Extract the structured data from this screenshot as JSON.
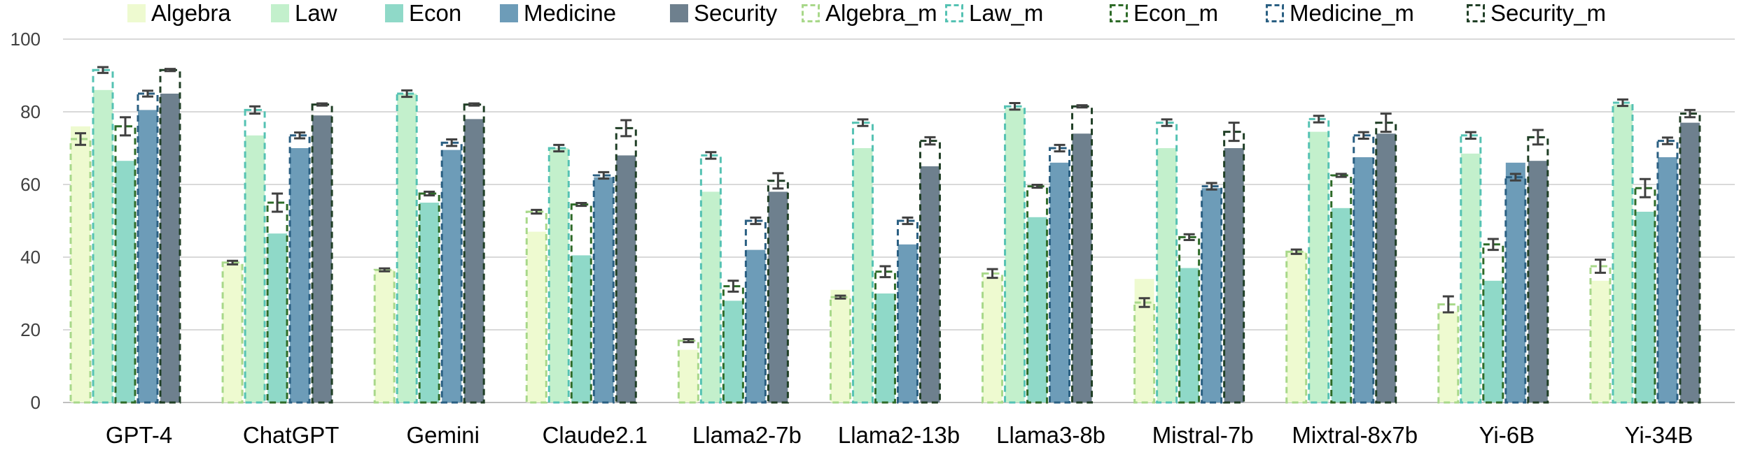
{
  "chart_data": {
    "type": "bar",
    "categories": [
      "GPT-4",
      "ChatGPT",
      "Gemini",
      "Claude2.1",
      "Llama2-7b",
      "Llama2-13b",
      "Llama3-8b",
      "Mistral-7b",
      "Mixtral-8x7b",
      "Yi-6B",
      "Yi-34B"
    ],
    "ylim": [
      0,
      100
    ],
    "yticks": [
      0,
      20,
      40,
      60,
      80,
      100
    ],
    "grid": true,
    "legend_position": "top",
    "series": [
      {
        "name": "Algebra",
        "color": "#eefad0",
        "values": [
          76,
          38,
          36.5,
          47,
          14.5,
          31,
          34.5,
          34,
          41.5,
          25,
          33.5
        ]
      },
      {
        "name": "Law",
        "color": "#c3f0cc",
        "values": [
          86,
          73.5,
          85,
          70,
          58,
          70,
          81,
          70,
          74.5,
          68.5,
          82
        ]
      },
      {
        "name": "Econ",
        "color": "#8fd9c8",
        "values": [
          66.5,
          46.5,
          55,
          40.5,
          28,
          30,
          51,
          37,
          53.5,
          33.5,
          52.5
        ]
      },
      {
        "name": "Medicine",
        "color": "#6d9cb8",
        "values": [
          80.5,
          70,
          69.5,
          62,
          42,
          43.5,
          66,
          59,
          67.5,
          66,
          67.5
        ]
      },
      {
        "name": "Security",
        "color": "#6e808e",
        "values": [
          85,
          79,
          78,
          68,
          58,
          65,
          74,
          70,
          74,
          66.5,
          77
        ]
      },
      {
        "name": "Algebra_m",
        "color": "#a8d88a",
        "values": [
          72.5,
          38.5,
          36.5,
          52.5,
          17,
          29,
          35.5,
          27.5,
          41.5,
          27,
          37.5
        ],
        "err": [
          1.6,
          0.5,
          0.4,
          0.5,
          0.4,
          0.4,
          1.2,
          1.2,
          0.6,
          2.2,
          1.8
        ]
      },
      {
        "name": "Law_m",
        "color": "#55c2b3",
        "values": [
          91.5,
          80.5,
          85,
          70,
          68,
          77,
          81.5,
          77,
          78,
          73.5,
          82.5
        ],
        "err": [
          0.8,
          1,
          0.9,
          0.9,
          0.9,
          0.9,
          0.9,
          0.9,
          0.9,
          0.9,
          0.9
        ]
      },
      {
        "name": "Econ_m",
        "color": "#2e6b28",
        "values": [
          76,
          55,
          57.5,
          54.5,
          32,
          36,
          59.5,
          45.5,
          62.5,
          43.5,
          59
        ],
        "err": [
          2.5,
          2.5,
          0.5,
          0.4,
          1.5,
          1.5,
          0.4,
          0.8,
          0.4,
          1.5,
          2.5
        ]
      },
      {
        "name": "Medicine_m",
        "color": "#2a5f82",
        "values": [
          85,
          73.5,
          71.5,
          62.5,
          50,
          50,
          70,
          59.5,
          73.5,
          62,
          72
        ],
        "err": [
          0.8,
          0.8,
          0.9,
          0.9,
          0.9,
          0.9,
          0.9,
          0.9,
          0.9,
          0.9,
          0.9
        ]
      },
      {
        "name": "Security_m",
        "color": "#203f26",
        "values": [
          91.5,
          82,
          82,
          75.5,
          61,
          72,
          81.5,
          74.5,
          77,
          73,
          79.5
        ],
        "err": [
          0.3,
          0.3,
          0.3,
          2.2,
          2.1,
          1,
          0.3,
          2.5,
          2.5,
          2,
          1
        ]
      }
    ]
  }
}
